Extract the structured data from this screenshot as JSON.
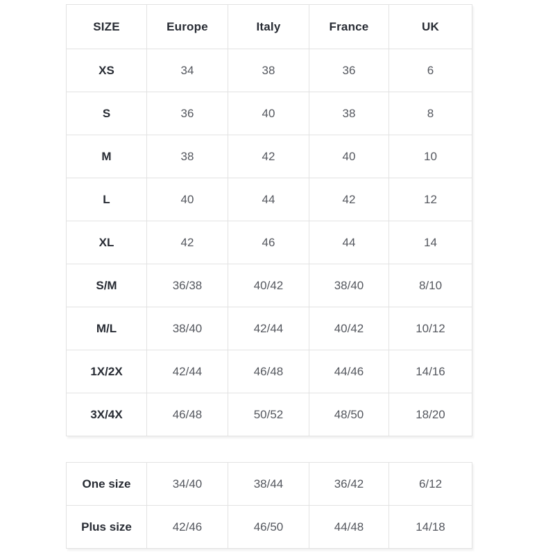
{
  "main_table": {
    "headers": [
      "SIZE",
      "Europe",
      "Italy",
      "France",
      "UK"
    ],
    "rows": [
      [
        "XS",
        "34",
        "38",
        "36",
        "6"
      ],
      [
        "S",
        "36",
        "40",
        "38",
        "8"
      ],
      [
        "M",
        "38",
        "42",
        "40",
        "10"
      ],
      [
        "L",
        "40",
        "44",
        "42",
        "12"
      ],
      [
        "XL",
        "42",
        "46",
        "44",
        "14"
      ],
      [
        "S/M",
        "36/38",
        "40/42",
        "38/40",
        "8/10"
      ],
      [
        "M/L",
        "38/40",
        "42/44",
        "40/42",
        "10/12"
      ],
      [
        "1X/2X",
        "42/44",
        "46/48",
        "44/46",
        "14/16"
      ],
      [
        "3X/4X",
        "46/48",
        "50/52",
        "48/50",
        "18/20"
      ]
    ]
  },
  "secondary_table": {
    "rows": [
      [
        "One size",
        "34/40",
        "38/44",
        "36/42",
        "6/12"
      ],
      [
        "Plus size",
        "42/46",
        "46/50",
        "44/48",
        "14/18"
      ]
    ]
  },
  "colors": {
    "background": "#ffffff",
    "grid_border": "#e2e2e2",
    "header_text": "#272b33",
    "value_text": "#54575e"
  }
}
